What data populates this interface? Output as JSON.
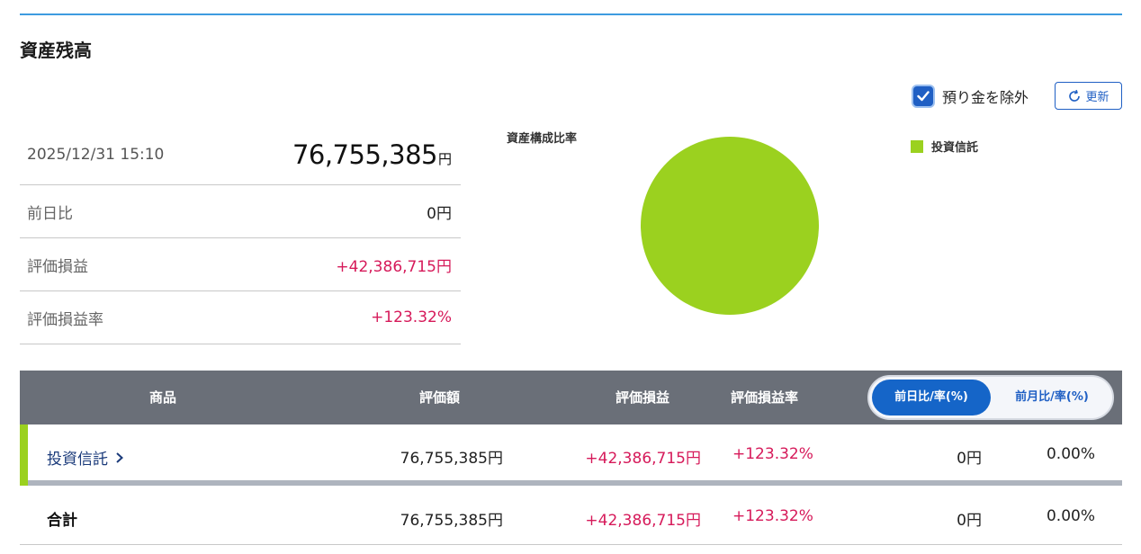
{
  "section_title": "資産残高",
  "controls": {
    "exclude_deposit_label": "預り金を除外",
    "exclude_deposit_checked": true,
    "refresh_label": "更新"
  },
  "summary": {
    "datetime": "2025/12/31 15:10",
    "total_value": "76,755,385",
    "total_unit": "円",
    "rows": [
      {
        "label": "前日比",
        "value": "0円"
      },
      {
        "label": "評価損益",
        "value": "+42,386,715円"
      },
      {
        "label": "評価損益率",
        "value": "+123.32%"
      }
    ]
  },
  "chart": {
    "title": "資産構成比率",
    "legend": [
      {
        "name": "投資信託",
        "color": "#9bd11f"
      }
    ]
  },
  "chart_data": {
    "type": "pie",
    "title": "資産構成比率",
    "labels": [
      "投資信託"
    ],
    "values": [
      100
    ],
    "colors": [
      "#9bd11f"
    ],
    "legend_position": "top-right"
  },
  "table": {
    "headers": {
      "product": "商品",
      "valuation": "評価額",
      "pl": "評価損益",
      "pl_rate": "評価損益率"
    },
    "toggle": {
      "active": "前日比/率(%)",
      "inactive": "前月比/率(%)"
    },
    "rows": [
      {
        "name": "投資信託",
        "valuation": "76,755,385円",
        "pl": "+42,386,715円",
        "pl_rate": "+123.32%",
        "change": "0円",
        "change_rate": "0.00%"
      }
    ],
    "total": {
      "name": "合計",
      "valuation": "76,755,385円",
      "pl": "+42,386,715円",
      "pl_rate": "+123.32%",
      "change": "0円",
      "change_rate": "0.00%"
    }
  },
  "colors": {
    "accent_blue": "#1f5fc4",
    "positive_red": "#d61a5a",
    "fund_green": "#9bd11f",
    "header_gray": "#6a6f78"
  }
}
